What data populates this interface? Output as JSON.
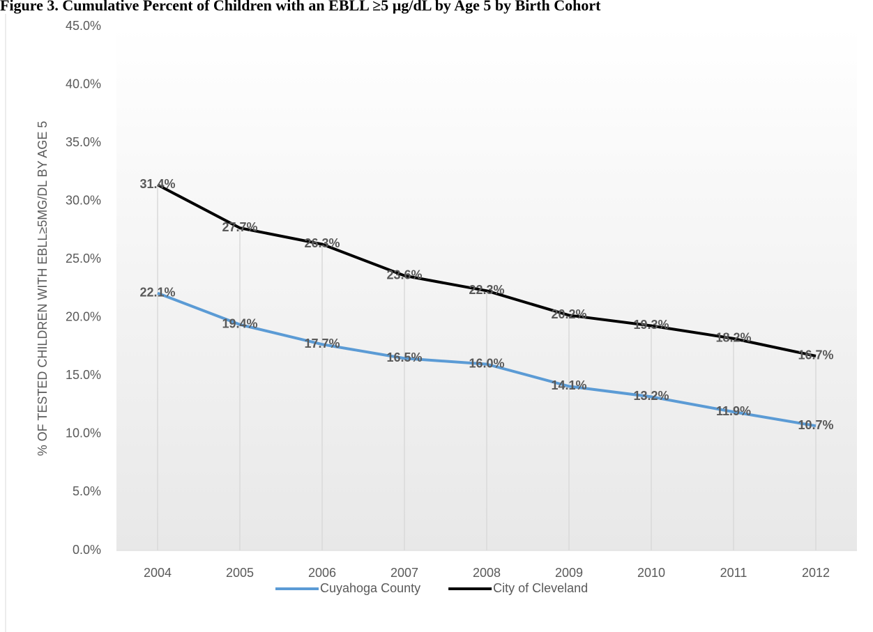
{
  "chart_data": {
    "type": "line",
    "title": "Figure 3. Cumulative Percent of Children with an EBLL ≥5 µg/dL by Age 5 by Birth Cohort",
    "y_label": "% OF TESTED CHILDREN WITH EBLL≥5MG/DL BY AGE 5",
    "categories": [
      "2004",
      "2005",
      "2006",
      "2007",
      "2008",
      "2009",
      "2010",
      "2011",
      "2012"
    ],
    "series": [
      {
        "name": "Cuyahoga County",
        "color": "#5b9bd5",
        "values": [
          22.1,
          19.4,
          17.7,
          16.5,
          16.0,
          14.1,
          13.2,
          11.9,
          10.7
        ],
        "value_labels": [
          "22.1%",
          "19.4%",
          "17.7%",
          "16.5%",
          "16.0%",
          "14.1%",
          "13.2%",
          "11.9%",
          "10.7%"
        ]
      },
      {
        "name": "City of Cleveland",
        "color": "#000000",
        "values": [
          31.4,
          27.7,
          26.3,
          23.6,
          22.3,
          20.2,
          19.3,
          18.2,
          16.7
        ],
        "value_labels": [
          "31.4%",
          "27.7%",
          "26.3%",
          "23.6%",
          "22.3%",
          "20.2%",
          "19.3%",
          "18.2%",
          "16.7%"
        ]
      }
    ],
    "ylim": [
      0,
      45
    ],
    "yticks": [
      {
        "value": 0,
        "label": "0.0%"
      },
      {
        "value": 5,
        "label": "5.0%"
      },
      {
        "value": 10,
        "label": "10.0%"
      },
      {
        "value": 15,
        "label": "15.0%"
      },
      {
        "value": 20,
        "label": "20.0%"
      },
      {
        "value": 25,
        "label": "25.0%"
      },
      {
        "value": 30,
        "label": "30.0%"
      },
      {
        "value": 35,
        "label": "35.0%"
      },
      {
        "value": 40,
        "label": "40.0%"
      },
      {
        "value": 45,
        "label": "45.0%"
      }
    ],
    "drop_lines": true,
    "legend": "bottom"
  }
}
